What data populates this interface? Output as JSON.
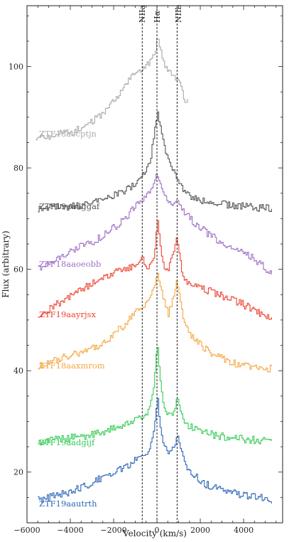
{
  "chart_data": {
    "type": "line",
    "xlabel": "Velocity (km/s)",
    "ylabel": "Flux (arbitrary)",
    "xlim": [
      -6000,
      5800
    ],
    "ylim": [
      10,
      112
    ],
    "xticks": [
      -6000,
      -4000,
      -2000,
      0,
      2000,
      4000
    ],
    "yticks": [
      20,
      40,
      60,
      80,
      100
    ],
    "grid": false,
    "vlines": [
      {
        "name": "NIIa",
        "x": -680
      },
      {
        "name": "Hα",
        "x": 0
      },
      {
        "name": "NIIb",
        "x": 930
      }
    ],
    "series": [
      {
        "name": "ZTF18accptjn",
        "color": "#aaaaaa",
        "x_range": [
          -5600,
          1450
        ],
        "points": [
          [
            -5600,
            86
          ],
          [
            -4000,
            87
          ],
          [
            -3000,
            89
          ],
          [
            -2000,
            93
          ],
          [
            -1500,
            96
          ],
          [
            -1000,
            99
          ],
          [
            -700,
            99.5
          ],
          [
            -300,
            101
          ],
          [
            -100,
            103
          ],
          [
            0,
            106
          ],
          [
            150,
            103
          ],
          [
            400,
            99.5
          ],
          [
            650,
            98.5
          ],
          [
            900,
            97.5
          ],
          [
            1000,
            98
          ],
          [
            1150,
            95
          ],
          [
            1300,
            93
          ],
          [
            1450,
            93
          ]
        ]
      },
      {
        "name": "ZTF19aadggaf",
        "color": "#555555",
        "x_range": [
          -5500,
          5300
        ],
        "points": [
          [
            -5500,
            72
          ],
          [
            -3500,
            72.5
          ],
          [
            -2500,
            73.5
          ],
          [
            -1500,
            75.5
          ],
          [
            -1000,
            77
          ],
          [
            -600,
            79
          ],
          [
            -300,
            82
          ],
          [
            -100,
            88
          ],
          [
            0,
            91
          ],
          [
            200,
            87
          ],
          [
            400,
            83
          ],
          [
            700,
            80
          ],
          [
            1000,
            77
          ],
          [
            1300,
            75
          ],
          [
            2000,
            73.5
          ],
          [
            3500,
            72.5
          ],
          [
            5300,
            72
          ]
        ]
      },
      {
        "name": "ZTF18aaoeobb",
        "color": "#9f70c4",
        "x_range": [
          -5500,
          5300
        ],
        "points": [
          [
            -5500,
            60
          ],
          [
            -4500,
            62.5
          ],
          [
            -3500,
            64.5
          ],
          [
            -2500,
            66.5
          ],
          [
            -1500,
            70
          ],
          [
            -1000,
            72.5
          ],
          [
            -500,
            74.5
          ],
          [
            -200,
            76
          ],
          [
            0,
            79
          ],
          [
            200,
            76
          ],
          [
            400,
            74
          ],
          [
            700,
            73
          ],
          [
            900,
            74
          ],
          [
            1100,
            72
          ],
          [
            1500,
            70
          ],
          [
            2500,
            66.5
          ],
          [
            3500,
            64
          ],
          [
            4500,
            62
          ],
          [
            5300,
            59
          ]
        ]
      },
      {
        "name": "ZTF19aayrjsx",
        "color": "#ee4433",
        "x_range": [
          -5500,
          5300
        ],
        "points": [
          [
            -5500,
            50.5
          ],
          [
            -4500,
            53.5
          ],
          [
            -3500,
            56
          ],
          [
            -2500,
            58.5
          ],
          [
            -1500,
            60
          ],
          [
            -1000,
            61
          ],
          [
            -700,
            62.5
          ],
          [
            -500,
            60
          ],
          [
            -250,
            61
          ],
          [
            -100,
            64
          ],
          [
            0,
            70
          ],
          [
            120,
            65
          ],
          [
            300,
            60
          ],
          [
            500,
            60
          ],
          [
            700,
            63
          ],
          [
            900,
            66
          ],
          [
            1050,
            62
          ],
          [
            1200,
            58
          ],
          [
            1600,
            57
          ],
          [
            2500,
            55.5
          ],
          [
            3500,
            54
          ],
          [
            4500,
            52
          ],
          [
            5300,
            50
          ]
        ]
      },
      {
        "name": "ZTF18aaxmrom",
        "color": "#f5a742",
        "x_range": [
          -5500,
          5300
        ],
        "points": [
          [
            -5500,
            41
          ],
          [
            -4500,
            42.5
          ],
          [
            -3500,
            43.5
          ],
          [
            -2500,
            45.5
          ],
          [
            -1500,
            49
          ],
          [
            -1000,
            52
          ],
          [
            -600,
            53
          ],
          [
            -300,
            55
          ],
          [
            -100,
            57
          ],
          [
            0,
            59.5
          ],
          [
            150,
            56.5
          ],
          [
            300,
            54
          ],
          [
            500,
            51
          ],
          [
            700,
            54
          ],
          [
            900,
            58
          ],
          [
            1050,
            54
          ],
          [
            1200,
            50
          ],
          [
            1600,
            46.5
          ],
          [
            2500,
            43.5
          ],
          [
            3500,
            41.5
          ],
          [
            4500,
            40.5
          ],
          [
            5300,
            40.5
          ]
        ]
      },
      {
        "name": "ZTF19aadgijf",
        "color": "#33cc55",
        "x_range": [
          -5500,
          5300
        ],
        "points": [
          [
            -5500,
            26
          ],
          [
            -4500,
            26.5
          ],
          [
            -3500,
            27
          ],
          [
            -2500,
            28
          ],
          [
            -1500,
            29.5
          ],
          [
            -1000,
            30.5
          ],
          [
            -700,
            31
          ],
          [
            -400,
            32
          ],
          [
            -150,
            37
          ],
          [
            0,
            46
          ],
          [
            130,
            38
          ],
          [
            300,
            32.5
          ],
          [
            600,
            31
          ],
          [
            800,
            32
          ],
          [
            930,
            35
          ],
          [
            1050,
            32
          ],
          [
            1300,
            29.5
          ],
          [
            2000,
            28
          ],
          [
            3000,
            27
          ],
          [
            4000,
            26.5
          ],
          [
            5300,
            26
          ]
        ]
      },
      {
        "name": "ZTF19aautrth",
        "color": "#2f68b8",
        "x_range": [
          -5500,
          5300
        ],
        "points": [
          [
            -5500,
            14.5
          ],
          [
            -4500,
            15.5
          ],
          [
            -3500,
            17
          ],
          [
            -2500,
            19
          ],
          [
            -1500,
            21
          ],
          [
            -1000,
            22.5
          ],
          [
            -700,
            23
          ],
          [
            -400,
            24
          ],
          [
            -150,
            28
          ],
          [
            0,
            35
          ],
          [
            130,
            29
          ],
          [
            300,
            25
          ],
          [
            600,
            24
          ],
          [
            800,
            25
          ],
          [
            930,
            27.5
          ],
          [
            1050,
            25
          ],
          [
            1300,
            21.5
          ],
          [
            2000,
            18
          ],
          [
            3000,
            16.5
          ],
          [
            4000,
            15.5
          ],
          [
            5300,
            14.5
          ]
        ]
      }
    ]
  },
  "labels": {
    "s0": "ZTF18accptjn",
    "s1": "ZTF19aadggaf",
    "s2": "ZTF18aaoeobb",
    "s3": "ZTF19aayrjsx",
    "s4": "ZTF18aaxmrom",
    "s5": "ZTF19aadgijf",
    "s6": "ZTF19aautrth"
  },
  "line_labels": {
    "niia": "NIIa",
    "ha": "Hα",
    "niib": "NIIb"
  }
}
